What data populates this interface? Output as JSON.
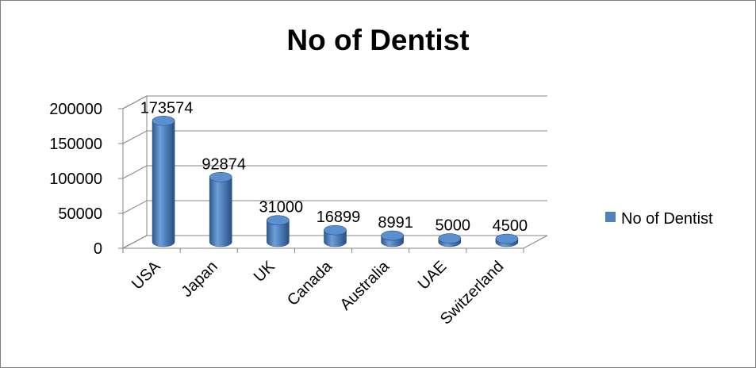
{
  "chart_data": {
    "type": "bar",
    "title": "No of Dentist",
    "categories": [
      "USA",
      "Japan",
      "UK",
      "Canada",
      "Australia",
      "UAE",
      "Switzerland"
    ],
    "series": [
      {
        "name": "No of Dentist",
        "values": [
          173574,
          92874,
          31000,
          16899,
          8991,
          5000,
          4500
        ],
        "color": "#4f81bd"
      }
    ],
    "data_labels": [
      "173574",
      "92874",
      "31000",
      "16899",
      "8991",
      "5000",
      "4500"
    ],
    "y_ticks": [
      "0",
      "50000",
      "100000",
      "150000",
      "200000"
    ],
    "ylim": [
      0,
      200000
    ],
    "grid": true,
    "legend_position": "right",
    "style": "3d-cylinder"
  }
}
